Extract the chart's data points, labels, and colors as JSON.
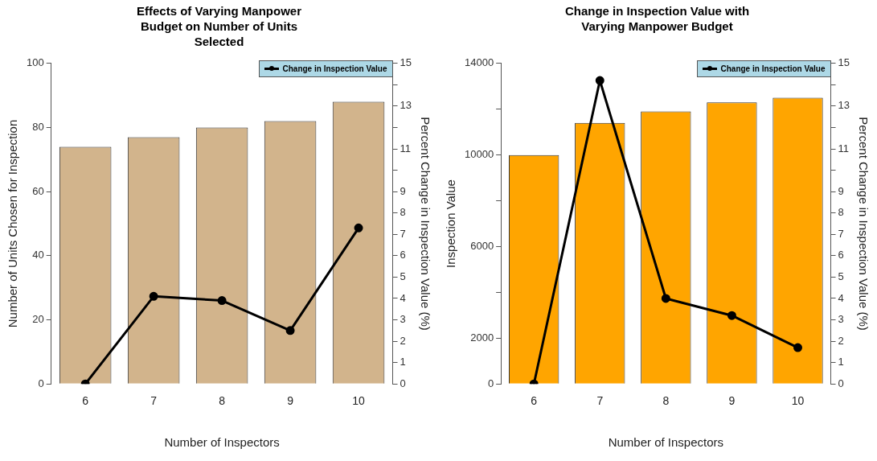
{
  "chart_data": [
    {
      "type": "bar",
      "title": "Effects of Varying Manpower Budget on Number of Units Selected",
      "xlabel": "Number of Inspectors",
      "ylabel": "Number of Units Chosen for Inspection",
      "y2label": "Percent Change in Inspection Value (%)",
      "categories": [
        "6",
        "7",
        "8",
        "9",
        "10"
      ],
      "series": [
        {
          "color": "#d2b48c",
          "values": [
            74,
            77,
            80,
            82,
            88
          ]
        },
        {
          "type": "line",
          "name": "Change in Inspection Value",
          "color": "#000000",
          "axis": "y2",
          "values": [
            0,
            4.1,
            3.9,
            2.5,
            7.3
          ]
        }
      ],
      "ylim": [
        0,
        100
      ],
      "yticks": [
        0,
        20,
        40,
        60,
        80,
        100
      ],
      "y2lim": [
        0,
        15
      ],
      "y2ticks": [
        0,
        1,
        2,
        3,
        4,
        5,
        6,
        7,
        8,
        9,
        {
          "value": 10,
          "label": null
        },
        11,
        {
          "value": 12,
          "label": null
        },
        13,
        {
          "value": 14,
          "label": null
        },
        15
      ],
      "legend": "top right",
      "marker": "circle",
      "line_style": "solid",
      "grid": false
    },
    {
      "type": "bar",
      "title": "Change in Inspection Value with Varying Manpower Budget",
      "xlabel": "Number of Inspectors",
      "ylabel": "Inspection Value",
      "y2label": "Percent Change in Inspection Value (%)",
      "categories": [
        "6",
        "7",
        "8",
        "9",
        "10"
      ],
      "series": [
        {
          "color": "#ffa500",
          "values": [
            10000,
            11400,
            11900,
            12300,
            12500
          ]
        },
        {
          "type": "line",
          "name": "Change in Inspection Value",
          "color": "#000000",
          "axis": "y2",
          "values": [
            0,
            14.2,
            4.0,
            3.2,
            1.7
          ]
        }
      ],
      "ylim": [
        0,
        14000
      ],
      "yticks": [
        0,
        2000,
        {
          "value": 4000,
          "label": null
        },
        6000,
        {
          "value": 8000,
          "label": null
        },
        10000,
        {
          "value": 12000,
          "label": null
        },
        14000
      ],
      "y2lim": [
        0,
        15
      ],
      "y2ticks": [
        0,
        1,
        2,
        3,
        4,
        5,
        6,
        7,
        8,
        9,
        {
          "value": 10,
          "label": null
        },
        11,
        {
          "value": 12,
          "label": null
        },
        13,
        {
          "value": 14,
          "label": null
        },
        15
      ],
      "legend": "top right",
      "marker": "circle",
      "line_style": "solid",
      "grid": false
    }
  ]
}
